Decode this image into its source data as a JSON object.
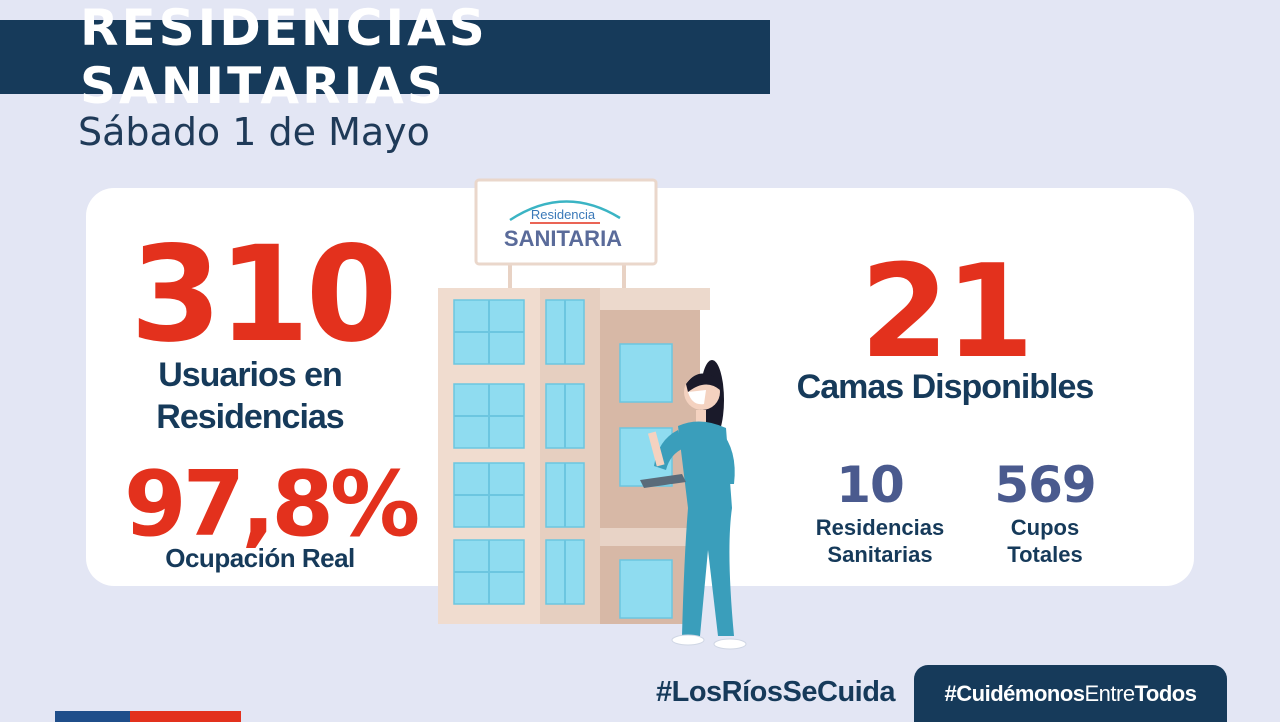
{
  "header": {
    "title": "RESIDENCIAS SANITARIAS",
    "date": "Sábado 1 de Mayo"
  },
  "stats": {
    "usuarios": {
      "value": "310",
      "label_line1": "Usuarios en",
      "label_line2": "Residencias"
    },
    "ocupacion": {
      "value": "97,8%",
      "label": "Ocupación Real"
    },
    "camas": {
      "value": "21",
      "label": "Camas Disponibles"
    },
    "residencias": {
      "value": "10",
      "label_line1": "Residencias",
      "label_line2": "Sanitarias"
    },
    "cupos": {
      "value": "569",
      "label_line1": "Cupos",
      "label_line2": "Totales"
    }
  },
  "sign": {
    "line1": "Residencia",
    "line2": "SANITARIA"
  },
  "footer": {
    "hashtag_rios": "#LosRíosSeCuida",
    "hashtag_cuidemonos_bold1": "#Cuidémonos",
    "hashtag_cuidemonos_light": "Entre",
    "hashtag_cuidemonos_bold2": "Todos"
  },
  "colors": {
    "accent_red": "#e3311d",
    "navy": "#163a5a",
    "slate": "#4a5a8e",
    "background": "#e3e6f4"
  }
}
